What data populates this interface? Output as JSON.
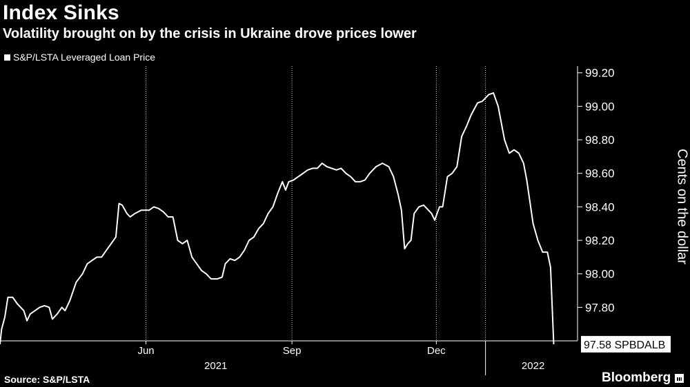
{
  "header": {
    "title": "Index Sinks",
    "subtitle": "Volatility brought on by the crisis in Ukraine drove prices lower"
  },
  "legend": {
    "label": "S&P/LSTA Leveraged Loan Price"
  },
  "footer": {
    "source": "Source: S&P/LSTA",
    "brand": "Bloomberg"
  },
  "chart_data": {
    "type": "line",
    "title": "Index Sinks",
    "subtitle": "Volatility brought on by the crisis in Ukraine drove prices lower",
    "ylabel": "Cents on the dollar",
    "xlabel": "",
    "ylim": [
      97.6,
      99.24
    ],
    "yticks": [
      97.8,
      98.0,
      98.2,
      98.4,
      98.6,
      98.8,
      99.0,
      99.2
    ],
    "ytick_labels": [
      "97.80",
      "98.00",
      "98.20",
      "98.40",
      "98.60",
      "98.80",
      "99.00",
      "99.20"
    ],
    "xlim": [
      "2021-03-01",
      "2022-02-28"
    ],
    "month_ticks": [
      {
        "date": "2021-06-01",
        "label": "Jun"
      },
      {
        "date": "2021-09-01",
        "label": "Sep"
      },
      {
        "date": "2021-12-01",
        "label": "Dec"
      }
    ],
    "year_ticks": [
      {
        "date": "2021-07-15",
        "label": "2021"
      },
      {
        "date": "2022-01-31",
        "label": "2022"
      }
    ],
    "year_boundary": "2022-01-01",
    "gridlines": "vertical",
    "series": [
      {
        "name": "S&P/LSTA Leveraged Loan Price",
        "last_value_label": "97.58 SPBDALB",
        "points": [
          [
            "2021-03-01",
            97.58
          ],
          [
            "2021-03-02",
            97.67
          ],
          [
            "2021-03-04",
            97.74
          ],
          [
            "2021-03-06",
            97.86
          ],
          [
            "2021-03-09",
            97.86
          ],
          [
            "2021-03-12",
            97.82
          ],
          [
            "2021-03-14",
            97.8
          ],
          [
            "2021-03-16",
            97.78
          ],
          [
            "2021-03-18",
            97.72
          ],
          [
            "2021-03-20",
            97.76
          ],
          [
            "2021-03-23",
            97.78
          ],
          [
            "2021-03-26",
            97.8
          ],
          [
            "2021-03-29",
            97.81
          ],
          [
            "2021-04-01",
            97.8
          ],
          [
            "2021-04-03",
            97.73
          ],
          [
            "2021-04-06",
            97.76
          ],
          [
            "2021-04-09",
            97.8
          ],
          [
            "2021-04-11",
            97.78
          ],
          [
            "2021-04-14",
            97.84
          ],
          [
            "2021-04-18",
            97.95
          ],
          [
            "2021-04-22",
            98.0
          ],
          [
            "2021-04-25",
            98.06
          ],
          [
            "2021-04-28",
            98.08
          ],
          [
            "2021-05-01",
            98.1
          ],
          [
            "2021-05-04",
            98.1
          ],
          [
            "2021-05-07",
            98.14
          ],
          [
            "2021-05-10",
            98.18
          ],
          [
            "2021-05-13",
            98.22
          ],
          [
            "2021-05-15",
            98.42
          ],
          [
            "2021-05-17",
            98.41
          ],
          [
            "2021-05-20",
            98.36
          ],
          [
            "2021-05-22",
            98.34
          ],
          [
            "2021-05-25",
            98.36
          ],
          [
            "2021-05-29",
            98.38
          ],
          [
            "2021-06-03",
            98.38
          ],
          [
            "2021-06-06",
            98.4
          ],
          [
            "2021-06-09",
            98.39
          ],
          [
            "2021-06-12",
            98.37
          ],
          [
            "2021-06-15",
            98.34
          ],
          [
            "2021-06-18",
            98.34
          ],
          [
            "2021-06-21",
            98.2
          ],
          [
            "2021-06-24",
            98.18
          ],
          [
            "2021-06-27",
            98.2
          ],
          [
            "2021-06-30",
            98.1
          ],
          [
            "2021-07-03",
            98.06
          ],
          [
            "2021-07-06",
            98.02
          ],
          [
            "2021-07-09",
            98.0
          ],
          [
            "2021-07-12",
            97.97
          ],
          [
            "2021-07-16",
            97.97
          ],
          [
            "2021-07-19",
            97.98
          ],
          [
            "2021-07-21",
            98.06
          ],
          [
            "2021-07-24",
            98.09
          ],
          [
            "2021-07-27",
            98.08
          ],
          [
            "2021-07-30",
            98.1
          ],
          [
            "2021-08-02",
            98.14
          ],
          [
            "2021-08-05",
            98.2
          ],
          [
            "2021-08-08",
            98.22
          ],
          [
            "2021-08-11",
            98.27
          ],
          [
            "2021-08-14",
            98.3
          ],
          [
            "2021-08-17",
            98.36
          ],
          [
            "2021-08-20",
            98.4
          ],
          [
            "2021-08-23",
            98.48
          ],
          [
            "2021-08-26",
            98.55
          ],
          [
            "2021-08-28",
            98.5
          ],
          [
            "2021-08-30",
            98.55
          ],
          [
            "2021-09-02",
            98.56
          ],
          [
            "2021-09-05",
            98.58
          ],
          [
            "2021-09-08",
            98.6
          ],
          [
            "2021-09-11",
            98.62
          ],
          [
            "2021-09-14",
            98.63
          ],
          [
            "2021-09-17",
            98.63
          ],
          [
            "2021-09-20",
            98.66
          ],
          [
            "2021-09-23",
            98.64
          ],
          [
            "2021-09-26",
            98.63
          ],
          [
            "2021-09-29",
            98.62
          ],
          [
            "2021-10-02",
            98.63
          ],
          [
            "2021-10-05",
            98.6
          ],
          [
            "2021-10-08",
            98.58
          ],
          [
            "2021-10-11",
            98.55
          ],
          [
            "2021-10-14",
            98.55
          ],
          [
            "2021-10-17",
            98.56
          ],
          [
            "2021-10-20",
            98.6
          ],
          [
            "2021-10-24",
            98.64
          ],
          [
            "2021-10-28",
            98.66
          ],
          [
            "2021-11-01",
            98.64
          ],
          [
            "2021-11-04",
            98.58
          ],
          [
            "2021-11-07",
            98.47
          ],
          [
            "2021-11-09",
            98.38
          ],
          [
            "2021-11-11",
            98.15
          ],
          [
            "2021-11-13",
            98.18
          ],
          [
            "2021-11-15",
            98.2
          ],
          [
            "2021-11-17",
            98.36
          ],
          [
            "2021-11-20",
            98.4
          ],
          [
            "2021-11-23",
            98.41
          ],
          [
            "2021-11-26",
            98.38
          ],
          [
            "2021-11-28",
            98.36
          ],
          [
            "2021-11-30",
            98.32
          ],
          [
            "2021-12-03",
            98.4
          ],
          [
            "2021-12-05",
            98.4
          ],
          [
            "2021-12-08",
            98.58
          ],
          [
            "2021-12-11",
            98.6
          ],
          [
            "2021-12-14",
            98.64
          ],
          [
            "2021-12-17",
            98.82
          ],
          [
            "2021-12-20",
            98.88
          ],
          [
            "2021-12-23",
            98.95
          ],
          [
            "2021-12-27",
            99.02
          ],
          [
            "2021-12-30",
            99.03
          ],
          [
            "2022-01-03",
            99.07
          ],
          [
            "2022-01-06",
            99.08
          ],
          [
            "2022-01-09",
            99.0
          ],
          [
            "2022-01-13",
            98.8
          ],
          [
            "2022-01-16",
            98.72
          ],
          [
            "2022-01-19",
            98.74
          ],
          [
            "2022-01-22",
            98.72
          ],
          [
            "2022-01-25",
            98.66
          ],
          [
            "2022-01-27",
            98.56
          ],
          [
            "2022-01-31",
            98.3
          ],
          [
            "2022-02-03",
            98.2
          ],
          [
            "2022-02-06",
            98.13
          ],
          [
            "2022-02-09",
            98.13
          ],
          [
            "2022-02-11",
            98.04
          ],
          [
            "2022-02-13",
            97.58
          ]
        ]
      }
    ],
    "colors": {
      "background": "#000000",
      "line": "#ffffff",
      "grid": "#ffffff",
      "label_bg": "#ffffff",
      "label_text": "#000000"
    }
  }
}
